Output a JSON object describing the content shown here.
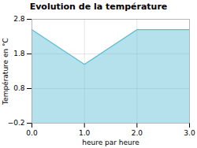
{
  "chart_data": {
    "type": "area",
    "title": "Evolution de la température",
    "xlabel": "heure par heure",
    "ylabel": "Température en °C",
    "x": [
      0,
      1,
      2,
      3
    ],
    "values": [
      2.5,
      1.5,
      2.5,
      2.5
    ],
    "xlim": [
      0,
      3
    ],
    "ylim": [
      -0.2,
      2.8
    ],
    "xticks": [
      0,
      1,
      2,
      3
    ],
    "yticks": [
      -0.2,
      0.8,
      1.8,
      2.8
    ],
    "color": "#5bbdd4",
    "grid": true
  }
}
